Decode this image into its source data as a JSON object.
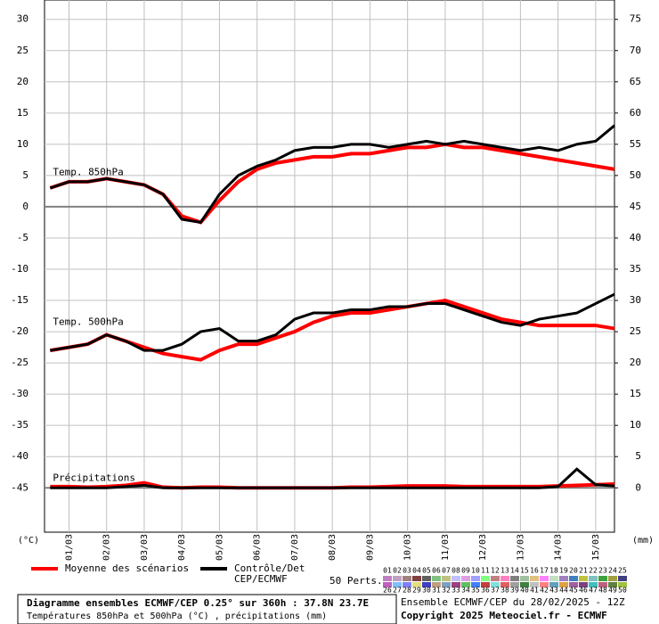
{
  "chart_data": {
    "type": "ensemble-line",
    "x": [
      0.5,
      1,
      1.5,
      2,
      2.5,
      3,
      3.5,
      4,
      4.5,
      5,
      5.5,
      6,
      6.5,
      7,
      7.5,
      8,
      8.5,
      9,
      9.5,
      10,
      10.5,
      11,
      11.5,
      12,
      12.5,
      13,
      13.5,
      14,
      14.5,
      15,
      15.5
    ],
    "xlim": [
      0.35,
      15.5
    ],
    "xticks": [
      {
        "value": 1,
        "label": "01/03"
      },
      {
        "value": 2,
        "label": "02/03"
      },
      {
        "value": 3,
        "label": "03/03"
      },
      {
        "value": 4,
        "label": "04/03"
      },
      {
        "value": 5,
        "label": "05/03"
      },
      {
        "value": 6,
        "label": "06/03"
      },
      {
        "value": 7,
        "label": "07/03"
      },
      {
        "value": 8,
        "label": "08/03"
      },
      {
        "value": 9,
        "label": "09/03"
      },
      {
        "value": 10,
        "label": "10/03"
      },
      {
        "value": 11,
        "label": "11/03"
      },
      {
        "value": 12,
        "label": "12/03"
      },
      {
        "value": 13,
        "label": "13/03"
      },
      {
        "value": 14,
        "label": "14/03"
      },
      {
        "value": 15,
        "label": "15/03"
      }
    ],
    "ylim": [
      -52.1,
      33.1
    ],
    "yticks": [
      -45,
      -40,
      -35,
      -30,
      -25,
      -20,
      -15,
      -10,
      -5,
      0,
      5,
      10,
      15,
      20,
      25,
      30
    ],
    "y2lim": [
      -7.1,
      78.1
    ],
    "y2ticks": [
      0,
      5,
      10,
      15,
      20,
      25,
      30,
      35,
      40,
      45,
      50,
      55,
      60,
      65,
      70,
      75
    ],
    "baselines": [
      0,
      -45
    ],
    "grid": true,
    "ylabel": "(°C)",
    "y2label": "(mm)",
    "annotations": [
      {
        "text": "Temp. 850hPa",
        "x": 0.5,
        "y": 5.5
      },
      {
        "text": "Temp. 500hPa",
        "x": 0.5,
        "y": -18.5
      },
      {
        "text": "Précipitations",
        "x": 0.5,
        "y": -43.5
      }
    ],
    "series": [
      {
        "name_lines": [
          "Moyenne des scénarios"
        ],
        "color": "#ff0000",
        "t850": [
          3,
          4,
          4,
          4.5,
          4,
          3.5,
          2,
          -1.5,
          -2.5,
          1,
          4,
          6,
          7,
          7.5,
          8,
          8,
          8.5,
          8.5,
          9,
          9.5,
          9.5,
          10,
          9.5,
          9.5,
          9,
          8.5,
          8,
          7.5,
          7,
          6.5,
          6
        ],
        "t500": [
          -23,
          -22.5,
          -22,
          -20.5,
          -21.5,
          -22.5,
          -23.5,
          -24,
          -24.5,
          -23,
          -22,
          -22,
          -21,
          -20,
          -18.5,
          -17.5,
          -17,
          -17,
          -16.5,
          -16,
          -15.5,
          -15,
          -16,
          -17,
          -18,
          -18.5,
          -19,
          -19,
          -19,
          -19,
          -19.5
        ],
        "precip": [
          0.2,
          0.2,
          0.1,
          0.2,
          0.4,
          0.8,
          0.1,
          0,
          0.1,
          0.1,
          0,
          0,
          0,
          0,
          0,
          0,
          0.1,
          0.1,
          0.2,
          0.3,
          0.3,
          0.3,
          0.2,
          0.2,
          0.2,
          0.2,
          0.2,
          0.3,
          0.4,
          0.5,
          0.6
        ]
      },
      {
        "name_lines": [
          "Contrôle/Det",
          "CEP/ECMWF"
        ],
        "color": "#000000",
        "t850": [
          3,
          4,
          4,
          4.5,
          4,
          3.5,
          2,
          -2,
          -2.5,
          2,
          5,
          6.5,
          7.5,
          9,
          9.5,
          9.5,
          10,
          10,
          9.5,
          10,
          10.5,
          10,
          10.5,
          10,
          9.5,
          9,
          9.5,
          9,
          10,
          10.5,
          13
        ],
        "t500": [
          -23,
          -22.5,
          -22,
          -20.5,
          -21.5,
          -23,
          -23,
          -22,
          -20,
          -19.5,
          -21.5,
          -21.5,
          -20.5,
          -18,
          -17,
          -17,
          -16.5,
          -16.5,
          -16,
          -16,
          -15.5,
          -15.5,
          -16.5,
          -17.5,
          -18.5,
          -19,
          -18,
          -17.5,
          -17,
          -15.5,
          -14
        ],
        "precip": [
          0,
          0,
          0,
          0,
          0.2,
          0.4,
          0,
          0,
          0,
          0,
          0,
          0,
          0,
          0,
          0,
          0,
          0,
          0,
          0,
          0,
          0,
          0,
          0,
          0,
          0,
          0,
          0,
          0.2,
          3,
          0.5,
          0.3
        ]
      }
    ],
    "perturbations": {
      "label": "50 Perts.",
      "members": [
        {
          "name": "01",
          "color": "#c080c0"
        },
        {
          "name": "02",
          "color": "#c0a0c0"
        },
        {
          "name": "03",
          "color": "#a08080"
        },
        {
          "name": "04",
          "color": "#804040"
        },
        {
          "name": "05",
          "color": "#606060"
        },
        {
          "name": "06",
          "color": "#80c080"
        },
        {
          "name": "07",
          "color": "#c0c080"
        },
        {
          "name": "08",
          "color": "#c0c0ff"
        },
        {
          "name": "09",
          "color": "#e0a0e0"
        },
        {
          "name": "10",
          "color": "#a0a0ff"
        },
        {
          "name": "11",
          "color": "#80ff80"
        },
        {
          "name": "12",
          "color": "#c08080"
        },
        {
          "name": "13",
          "color": "#ff80c0"
        },
        {
          "name": "14",
          "color": "#808080"
        },
        {
          "name": "15",
          "color": "#a0c0a0"
        },
        {
          "name": "16",
          "color": "#e0c080"
        },
        {
          "name": "17",
          "color": "#ff80ff"
        },
        {
          "name": "18",
          "color": "#c0e0c0"
        },
        {
          "name": "19",
          "color": "#a080c0"
        },
        {
          "name": "20",
          "color": "#4080c0"
        },
        {
          "name": "21",
          "color": "#c0c040"
        },
        {
          "name": "22",
          "color": "#80c0c0"
        },
        {
          "name": "23",
          "color": "#40a040"
        },
        {
          "name": "24",
          "color": "#a0a040"
        },
        {
          "name": "25",
          "color": "#404080"
        },
        {
          "name": "26",
          "color": "#c060c0"
        },
        {
          "name": "27",
          "color": "#80c0ff"
        },
        {
          "name": "28",
          "color": "#8080ff"
        },
        {
          "name": "29",
          "color": "#e0e080"
        },
        {
          "name": "30",
          "color": "#4040c0"
        },
        {
          "name": "31",
          "color": "#c0a080"
        },
        {
          "name": "32",
          "color": "#80a0c0"
        },
        {
          "name": "33",
          "color": "#a04080"
        },
        {
          "name": "34",
          "color": "#60c060"
        },
        {
          "name": "35",
          "color": "#4080ff"
        },
        {
          "name": "36",
          "color": "#c04040"
        },
        {
          "name": "37",
          "color": "#80e0e0"
        },
        {
          "name": "38",
          "color": "#e06060"
        },
        {
          "name": "39",
          "color": "#a0a0a0"
        },
        {
          "name": "40",
          "color": "#408040"
        },
        {
          "name": "41",
          "color": "#c0c0c0"
        },
        {
          "name": "42",
          "color": "#ff8080"
        },
        {
          "name": "43",
          "color": "#60a0c0"
        },
        {
          "name": "44",
          "color": "#e0a040"
        },
        {
          "name": "45",
          "color": "#a060a0"
        },
        {
          "name": "46",
          "color": "#804080"
        },
        {
          "name": "47",
          "color": "#40c0c0"
        },
        {
          "name": "48",
          "color": "#c06080"
        },
        {
          "name": "49",
          "color": "#608040"
        },
        {
          "name": "50",
          "color": "#a0c040"
        }
      ]
    },
    "footer": {
      "title": "Diagramme ensembles ECMWF/CEP 0.25° sur 360h : 37.8N 23.7E",
      "subtitle": "Températures 850hPa et 500hPa (°C) , précipitations (mm)",
      "run": "Ensemble ECMWF/CEP du 28/02/2025 - 12Z",
      "copyright": "Copyright 2025 Meteociel.fr - ECMWF"
    }
  }
}
